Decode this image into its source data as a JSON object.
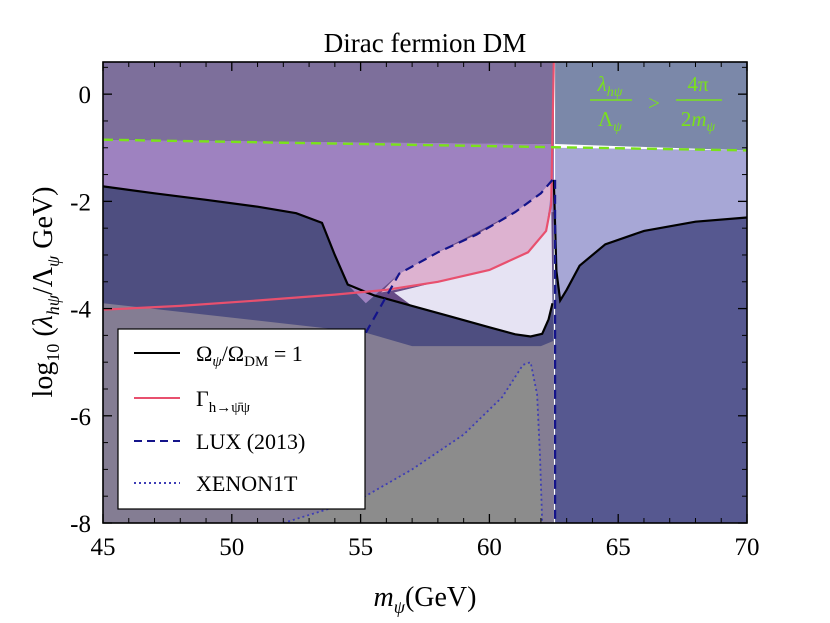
{
  "chart_data": {
    "type": "line",
    "title": "Dirac fermion DM",
    "xlabel": "m_ψ(GeV)",
    "ylabel": "log₁₀(λ_hψ/Λ_ψ GeV)",
    "xlim": [
      45,
      70
    ],
    "ylim": [
      -8,
      0.6
    ],
    "x_ticks": [
      "45",
      "50",
      "55",
      "60",
      "65",
      "70"
    ],
    "y_ticks": [
      "0",
      "-2",
      "-4",
      "-6",
      "-8"
    ],
    "y_tick_values": [
      0,
      -2,
      -4,
      -6,
      -8
    ],
    "series": [
      {
        "name": "Ω_ψ/Ω_DM = 1",
        "style": "solid",
        "color": "#000000",
        "segments": [
          [
            [
              45,
              -1.72
            ],
            [
              47,
              -1.85
            ],
            [
              49,
              -1.97
            ],
            [
              51,
              -2.1
            ],
            [
              52.5,
              -2.22
            ],
            [
              53.5,
              -2.4
            ],
            [
              54,
              -3.0
            ],
            [
              54.5,
              -3.55
            ],
            [
              55.5,
              -3.75
            ],
            [
              57,
              -3.95
            ],
            [
              58.5,
              -4.15
            ],
            [
              60,
              -4.35
            ],
            [
              61,
              -4.48
            ],
            [
              61.6,
              -4.52
            ],
            [
              62.05,
              -4.47
            ],
            [
              62.3,
              -4.2
            ],
            [
              62.45,
              -3.9
            ]
          ],
          [
            [
              62.5,
              -1.6
            ],
            [
              62.6,
              -3.3
            ],
            [
              62.75,
              -3.85
            ],
            [
              63,
              -3.65
            ],
            [
              63.5,
              -3.2
            ],
            [
              64.5,
              -2.8
            ],
            [
              66,
              -2.55
            ],
            [
              68,
              -2.38
            ],
            [
              70,
              -2.3
            ]
          ]
        ]
      },
      {
        "name": "Γ_{h→ψ̄ψ}",
        "style": "solid",
        "color": "#e8506e",
        "segments": [
          [
            [
              45,
              -4.02
            ],
            [
              48,
              -3.95
            ],
            [
              51,
              -3.85
            ],
            [
              54,
              -3.74
            ],
            [
              56,
              -3.65
            ],
            [
              58,
              -3.5
            ],
            [
              60,
              -3.28
            ],
            [
              61.5,
              -2.95
            ],
            [
              62.2,
              -2.55
            ],
            [
              62.4,
              -2.05
            ],
            [
              62.5,
              0.6
            ]
          ]
        ]
      },
      {
        "name": "LUX (2013)",
        "style": "dashed",
        "color": "#14148a",
        "segments": [
          [
            [
              55.2,
              -4.45
            ],
            [
              56.5,
              -3.35
            ],
            [
              58,
              -2.95
            ],
            [
              59.5,
              -2.62
            ],
            [
              61,
              -2.2
            ],
            [
              62,
              -1.85
            ],
            [
              62.45,
              -1.6
            ]
          ],
          [
            [
              62.55,
              -1.6
            ],
            [
              62.55,
              -8.0
            ]
          ]
        ]
      },
      {
        "name": "XENON1T",
        "style": "dotted",
        "color": "#3d3db5",
        "segments": [
          [
            [
              52,
              -8.0
            ],
            [
              55,
              -7.55
            ],
            [
              57,
              -7.0
            ],
            [
              59,
              -6.35
            ],
            [
              60.5,
              -5.65
            ],
            [
              61.3,
              -5.05
            ],
            [
              61.6,
              -5.0
            ],
            [
              61.85,
              -5.6
            ],
            [
              61.97,
              -6.8
            ],
            [
              62.05,
              -8.0
            ]
          ]
        ]
      }
    ],
    "annotations": [
      {
        "text_numerator_left": "λ_hψ",
        "text_denominator_left": "Λ_ψ",
        "relation": ">",
        "text_numerator_right": "4π",
        "text_denominator_right": "2m_ψ",
        "color": "#7ae21a"
      }
    ],
    "perturbativity_line": [
      [
        45,
        -0.85
      ],
      [
        70,
        -1.05
      ]
    ],
    "legend_position": "bottom-left"
  },
  "legend": {
    "entries": [
      {
        "label": "Ω_ψ/Ω_DM = 1"
      },
      {
        "label": "Γ_{h→ψ̄ψ}"
      },
      {
        "label": "LUX (2013)"
      },
      {
        "label": "XENON1T"
      }
    ]
  },
  "colors": {
    "region_upper_left": "#7d6f9b",
    "region_purple_band": "#9e82c0",
    "region_dark_purple": "#674b86",
    "region_grey_lower": "#847d93",
    "region_grey": "#8c8c8c",
    "region_right_dark": "#565890",
    "region_right_light": "#a7a7d6",
    "region_right_top": "#7b88a9",
    "region_pink": "#ddb2d0",
    "region_lavender": "#e6e3f3",
    "region_left_strip": "#4e4e80"
  }
}
